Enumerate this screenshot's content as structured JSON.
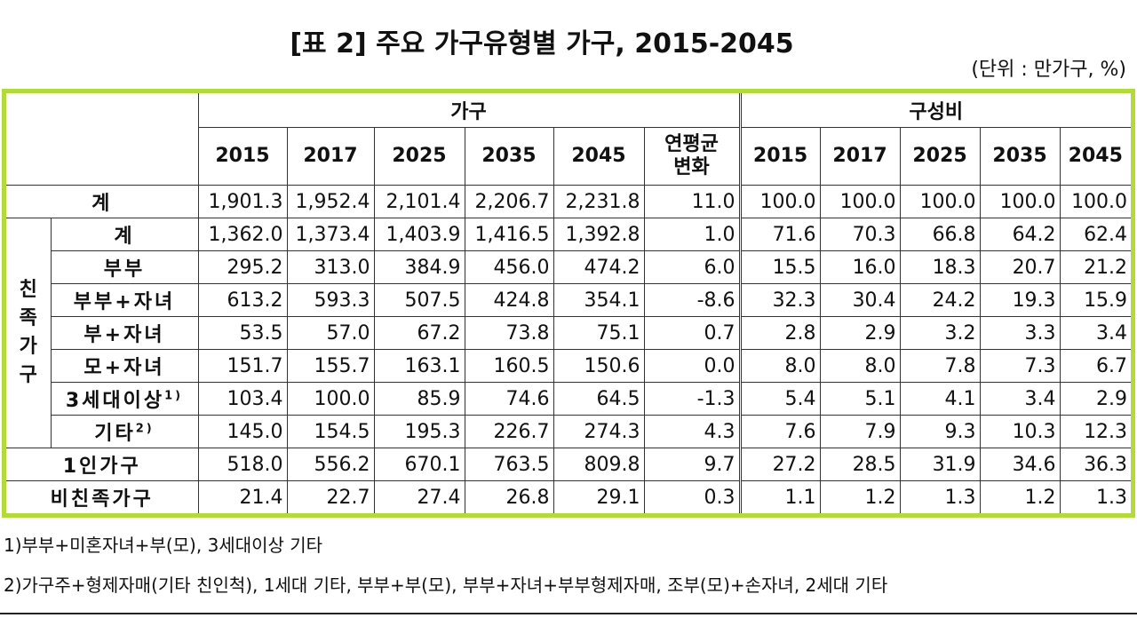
{
  "title": "[표 2] 주요 가구유형별 가구, 2015-2045",
  "unit": "(단위 : 만가구, %)",
  "table": {
    "group_headers": [
      "가구",
      "구성비"
    ],
    "columns": [
      "2015",
      "2017",
      "2025",
      "2035",
      "2045",
      "연평균\n변화",
      "2015",
      "2017",
      "2025",
      "2035",
      "2045"
    ],
    "rows": [
      {
        "label": "계",
        "values": [
          "1,901.3",
          "1,952.4",
          "2,101.4",
          "2,206.7",
          "2,231.8",
          "11.0",
          "100.0",
          "100.0",
          "100.0",
          "100.0",
          "100.0"
        ]
      },
      {
        "group": "친족가구",
        "rows": [
          {
            "label": "계",
            "values": [
              "1,362.0",
              "1,373.4",
              "1,403.9",
              "1,416.5",
              "1,392.8",
              "1.0",
              "71.6",
              "70.3",
              "66.8",
              "64.2",
              "62.4"
            ]
          },
          {
            "label": "부부",
            "values": [
              "295.2",
              "313.0",
              "384.9",
              "456.0",
              "474.2",
              "6.0",
              "15.5",
              "16.0",
              "18.3",
              "20.7",
              "21.2"
            ]
          },
          {
            "label": "부부+자녀",
            "values": [
              "613.2",
              "593.3",
              "507.5",
              "424.8",
              "354.1",
              "-8.6",
              "32.3",
              "30.4",
              "24.2",
              "19.3",
              "15.9"
            ]
          },
          {
            "label": "부+자녀",
            "values": [
              "53.5",
              "57.0",
              "67.2",
              "73.8",
              "75.1",
              "0.7",
              "2.8",
              "2.9",
              "3.2",
              "3.3",
              "3.4"
            ]
          },
          {
            "label": "모+자녀",
            "values": [
              "151.7",
              "155.7",
              "163.1",
              "160.5",
              "150.6",
              "0.0",
              "8.0",
              "8.0",
              "7.8",
              "7.3",
              "6.7"
            ]
          },
          {
            "label": "3세대이상",
            "note": "1)",
            "values": [
              "103.4",
              "100.0",
              "85.9",
              "74.6",
              "64.5",
              "-1.3",
              "5.4",
              "5.1",
              "4.1",
              "3.4",
              "2.9"
            ]
          },
          {
            "label": "기타",
            "note": "2)",
            "values": [
              "145.0",
              "154.5",
              "195.3",
              "226.7",
              "274.3",
              "4.3",
              "7.6",
              "7.9",
              "9.3",
              "10.3",
              "12.3"
            ]
          }
        ]
      },
      {
        "label": "1인가구",
        "values": [
          "518.0",
          "556.2",
          "670.1",
          "763.5",
          "809.8",
          "9.7",
          "27.2",
          "28.5",
          "31.9",
          "34.6",
          "36.3"
        ]
      },
      {
        "label": "비친족가구",
        "values": [
          "21.4",
          "22.7",
          "27.4",
          "26.8",
          "29.1",
          "0.3",
          "1.1",
          "1.2",
          "1.3",
          "1.2",
          "1.3"
        ]
      }
    ]
  },
  "footnotes": [
    "1)부부+미혼자녀+부(모), 3세대이상 기타",
    "2)가구주+형제자매(기타 친인척), 1세대 기타, 부부+부(모), 부부+자녀+부부형제자매, 조부(모)+손자녀, 2세대 기타"
  ]
}
